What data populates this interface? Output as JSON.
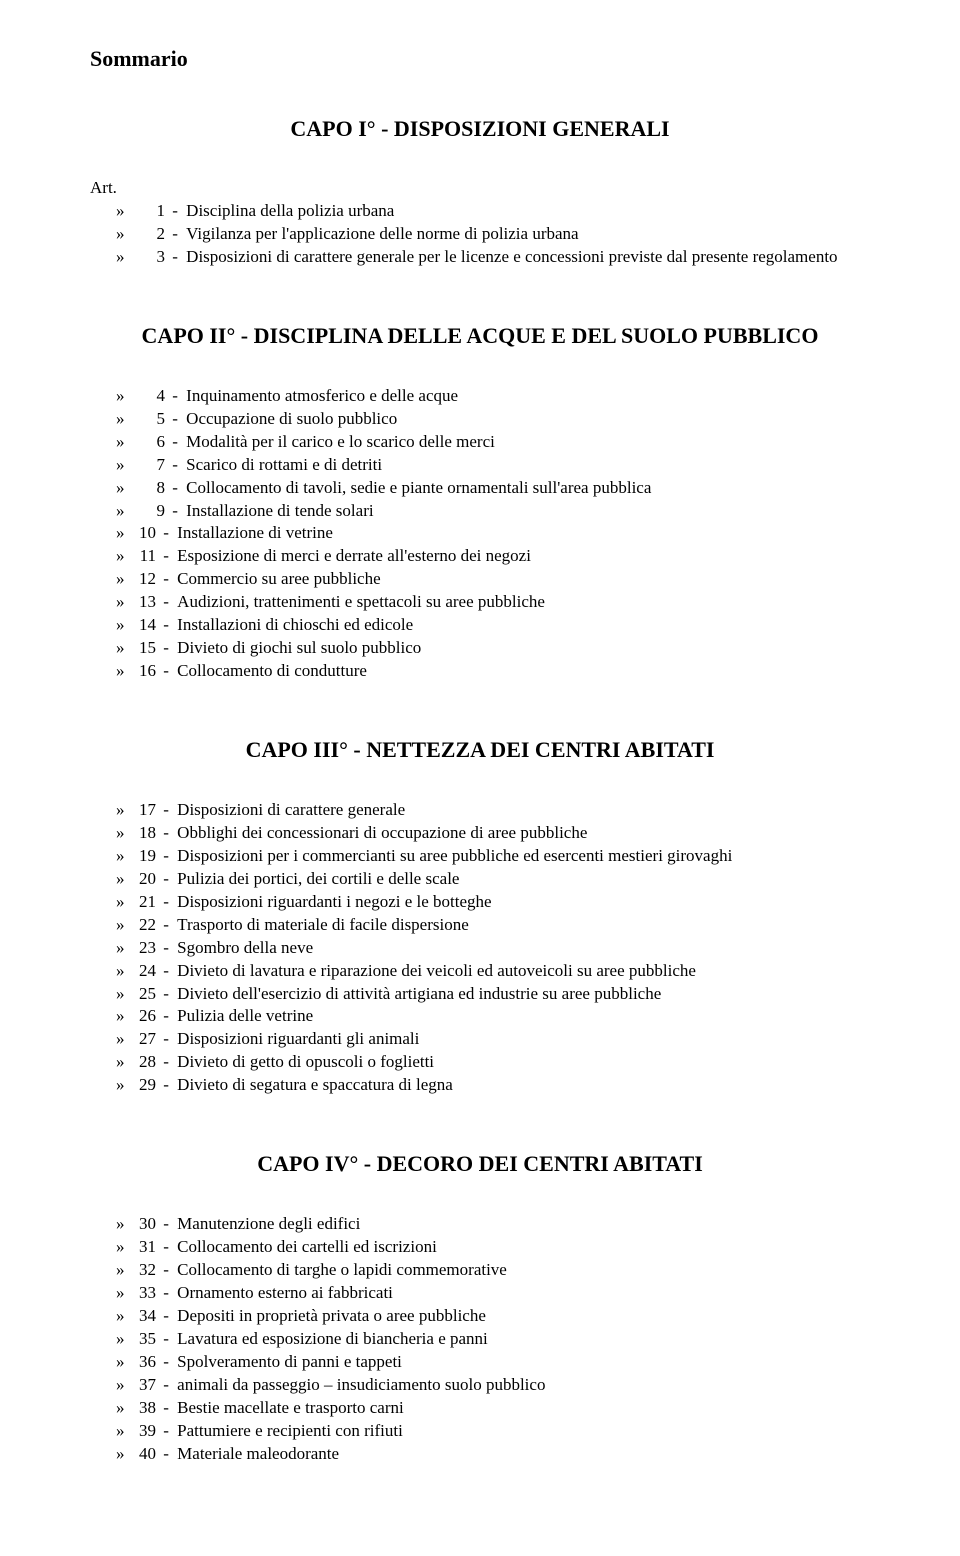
{
  "doc_title": "Sommario",
  "art_label": "Art.",
  "marker": "»",
  "sep": " - ",
  "chapters": [
    {
      "heading": "CAPO I°  -  DISPOSIZIONI GENERALI",
      "show_art_label": true,
      "items": [
        {
          "n": "1",
          "t": "Disciplina della polizia urbana"
        },
        {
          "n": "2",
          "t": "Vigilanza per l'applicazione delle norme di polizia urbana"
        },
        {
          "n": "3",
          "t": "Disposizioni di carattere generale per le licenze e concessioni previste dal presente regolamento"
        }
      ]
    },
    {
      "heading": "CAPO II°  -  DISCIPLINA DELLE ACQUE E DEL SUOLO PUBBLICO",
      "show_art_label": false,
      "items": [
        {
          "n": "4",
          "t": "Inquinamento atmosferico e delle acque"
        },
        {
          "n": "5",
          "t": "Occupazione di suolo pubblico"
        },
        {
          "n": "6",
          "t": "Modalità per il carico e lo scarico delle merci"
        },
        {
          "n": "7",
          "t": "Scarico di rottami e di detriti"
        },
        {
          "n": "8",
          "t": "Collocamento di tavoli, sedie e piante ornamentali sull'area pubblica"
        },
        {
          "n": "9",
          "t": "Installazione di tende solari"
        },
        {
          "n": "10",
          "t": "Installazione di vetrine"
        },
        {
          "n": "11",
          "t": "Esposizione di merci e derrate all'esterno dei negozi"
        },
        {
          "n": "12",
          "t": "Commercio su aree pubbliche"
        },
        {
          "n": "13",
          "t": "Audizioni, trattenimenti e spettacoli su aree pubbliche"
        },
        {
          "n": "14",
          "t": "Installazioni di chioschi ed edicole"
        },
        {
          "n": "15",
          "t": "Divieto di giochi sul suolo pubblico"
        },
        {
          "n": "16",
          "t": "Collocamento di condutture"
        }
      ]
    },
    {
      "heading": "CAPO III°  -  NETTEZZA DEI CENTRI ABITATI",
      "show_art_label": false,
      "items": [
        {
          "n": "17",
          "t": "Disposizioni di carattere generale"
        },
        {
          "n": "18",
          "t": "Obblighi dei concessionari di occupazione di aree pubbliche"
        },
        {
          "n": "19",
          "t": "Disposizioni per i commercianti su aree pubbliche ed esercenti mestieri girovaghi"
        },
        {
          "n": "20",
          "t": "Pulizia dei portici, dei cortili e delle scale"
        },
        {
          "n": "21",
          "t": "Disposizioni riguardanti i negozi e le botteghe"
        },
        {
          "n": "22",
          "t": "Trasporto di materiale di facile dispersione"
        },
        {
          "n": "23",
          "t": "Sgombro della neve"
        },
        {
          "n": "24",
          "t": "Divieto di lavatura e riparazione dei veicoli ed autoveicoli su aree pubbliche"
        },
        {
          "n": "25",
          "t": "Divieto dell'esercizio di attività artigiana ed industrie su aree pubbliche"
        },
        {
          "n": "26",
          "t": "Pulizia delle vetrine"
        },
        {
          "n": "27",
          "t": "Disposizioni riguardanti gli animali"
        },
        {
          "n": "28",
          "t": "Divieto di getto di opuscoli o foglietti"
        },
        {
          "n": "29",
          "t": "Divieto di segatura e spaccatura di legna"
        }
      ]
    },
    {
      "heading": "CAPO IV°  -  DECORO DEI CENTRI ABITATI",
      "show_art_label": false,
      "items": [
        {
          "n": "30",
          "t": "Manutenzione degli edifici"
        },
        {
          "n": "31",
          "t": "Collocamento dei cartelli ed iscrizioni"
        },
        {
          "n": "32",
          "t": "Collocamento di targhe o lapidi commemorative"
        },
        {
          "n": "33",
          "t": "Ornamento esterno ai fabbricati"
        },
        {
          "n": "34",
          "t": "Depositi in proprietà privata o aree pubbliche"
        },
        {
          "n": "35",
          "t": "Lavatura ed esposizione di biancheria e panni"
        },
        {
          "n": "36",
          "t": "Spolveramento di panni e tappeti"
        },
        {
          "n": "37",
          "t": "animali da passeggio – insudiciamento suolo pubblico"
        },
        {
          "n": "38",
          "t": "Bestie macellate e trasporto carni"
        },
        {
          "n": "39",
          "t": "Pattumiere e recipienti con rifiuti"
        },
        {
          "n": "40",
          "t": "Materiale maleodorante"
        }
      ]
    }
  ]
}
